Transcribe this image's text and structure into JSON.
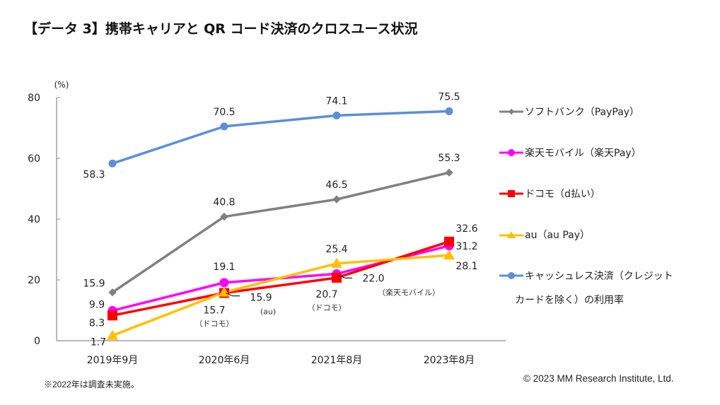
{
  "title": "【データ 3】携帯キャリアと QR コード決済のクロスユース状況",
  "footer": {
    "note": "※2022年は調査未実施。",
    "copyright": "© 2023 MM Research Institute, Ltd."
  },
  "chart_data": {
    "type": "line",
    "title": "【データ 3】携帯キャリアと QR コード決済のクロスユース状況",
    "ylabel": "(%)",
    "xlabel": "",
    "ylim": [
      0,
      80
    ],
    "yticks": [
      "0",
      "20",
      "40",
      "60",
      "80"
    ],
    "grid": false,
    "legend_position": "right",
    "categories": [
      "2019年9月",
      "2020年6月",
      "2021年8月",
      "2023年8月"
    ],
    "series": [
      {
        "name": "ソフトバンク（PayPay）",
        "color": "#808080",
        "marker": "diamond",
        "values": [
          15.9,
          40.8,
          46.5,
          55.3
        ]
      },
      {
        "name": "楽天モバイル（楽天Pay）",
        "color": "#FF00FF",
        "marker": "circle",
        "values": [
          9.9,
          19.1,
          22.0,
          31.2
        ]
      },
      {
        "name": "ドコモ（d払い）",
        "color": "#FF0000",
        "marker": "square",
        "values": [
          8.3,
          15.7,
          20.7,
          32.6
        ]
      },
      {
        "name": "au（au Pay）",
        "color": "#FFC000",
        "marker": "triangle",
        "values": [
          1.7,
          15.9,
          25.4,
          28.1
        ]
      },
      {
        "name": "キャッシュレス決済（クレジットカードを除く）の利用率",
        "color": "#5B8FD9",
        "marker": "circle",
        "values": [
          58.3,
          70.5,
          74.1,
          75.5
        ]
      }
    ],
    "legend": {
      "items": [
        "ソフトバンク（PayPay）",
        "楽天モバイル（楽天Pay）",
        "ドコモ（d払い）",
        "au（au Pay）",
        "キャッシュレス決済（クレジット"
      ],
      "last_item_second_line": "カードを除く）の利用率"
    },
    "data_labels": [
      {
        "text": "58.3",
        "series": 4,
        "point": 0
      },
      {
        "text": "70.5",
        "series": 4,
        "point": 1
      },
      {
        "text": "74.1",
        "series": 4,
        "point": 2
      },
      {
        "text": "75.5",
        "series": 4,
        "point": 3
      },
      {
        "text": "15.9",
        "series": 0,
        "point": 0
      },
      {
        "text": "40.8",
        "series": 0,
        "point": 1
      },
      {
        "text": "46.5",
        "series": 0,
        "point": 2
      },
      {
        "text": "55.3",
        "series": 0,
        "point": 3
      },
      {
        "text": "9.9",
        "series": 1,
        "point": 0
      },
      {
        "text": "19.1",
        "series": 1,
        "point": 1
      },
      {
        "text": "22.0",
        "series": 1,
        "point": 2,
        "annotation": "（楽天モバイル）"
      },
      {
        "text": "31.2",
        "series": 1,
        "point": 3
      },
      {
        "text": "8.3",
        "series": 2,
        "point": 0
      },
      {
        "text": "15.7",
        "series": 2,
        "point": 1,
        "annotation": "（ドコモ）"
      },
      {
        "text": "20.7",
        "series": 2,
        "point": 2,
        "annotation": "（ドコモ）"
      },
      {
        "text": "32.6",
        "series": 2,
        "point": 3
      },
      {
        "text": "1.7",
        "series": 3,
        "point": 0
      },
      {
        "text": "15.9",
        "series": 3,
        "point": 1,
        "annotation": "(au)"
      },
      {
        "text": "25.4",
        "series": 3,
        "point": 2
      },
      {
        "text": "28.1",
        "series": 3,
        "point": 3
      }
    ]
  }
}
